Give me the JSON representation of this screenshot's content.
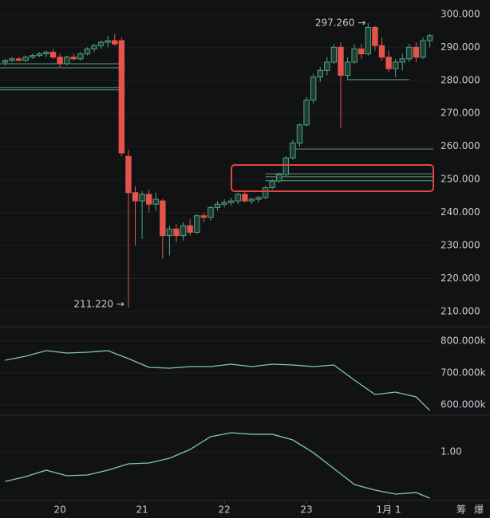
{
  "chart_data": {
    "type": "candlestick",
    "x": [
      -16,
      -14,
      -12,
      -10,
      -8,
      -6,
      -4,
      -2,
      0,
      2,
      4,
      6,
      8,
      10,
      12,
      14,
      16,
      18,
      20,
      22,
      24,
      26,
      28,
      30,
      32,
      34,
      36,
      38,
      40,
      42,
      44,
      46,
      48,
      50,
      52,
      54,
      56,
      58,
      60,
      62,
      64,
      66,
      68,
      70,
      72,
      74,
      76,
      78,
      80,
      82,
      84,
      86,
      88,
      90,
      92,
      94,
      96,
      98,
      100,
      102,
      104,
      106,
      108
    ],
    "open": [
      285.5,
      286,
      286.5,
      286,
      287,
      287.5,
      288,
      288.5,
      287,
      285,
      287,
      286.5,
      288,
      289.5,
      290.5,
      291.5,
      292,
      292,
      257,
      246,
      243.5,
      245.5,
      242.5,
      243.5,
      233,
      235,
      233,
      236,
      234,
      239,
      238.5,
      241.5,
      242.5,
      243,
      243.5,
      245.5,
      243.5,
      244,
      244.5,
      247.5,
      249.5,
      251.5,
      256.5,
      261,
      266.5,
      274,
      281,
      283,
      285.5,
      290,
      281.5,
      285.5,
      289.5,
      288,
      296,
      290.5,
      287,
      283.5,
      285.5,
      286.5,
      290,
      287,
      292
    ],
    "high": [
      286.5,
      287,
      287,
      287.5,
      288,
      288.5,
      289,
      289.5,
      288,
      287.5,
      288,
      288.5,
      290,
      291,
      292,
      293.5,
      294,
      293,
      259,
      248,
      246.5,
      247,
      246,
      244,
      236,
      236.5,
      237,
      238,
      239.5,
      240,
      242,
      243.5,
      244,
      244.5,
      246,
      246.5,
      244.5,
      245,
      248,
      250,
      252,
      257,
      262,
      267,
      275,
      282,
      284,
      287,
      291,
      291.5,
      287,
      291,
      291,
      297.26,
      296.5,
      293,
      289,
      286.5,
      288,
      291,
      291.5,
      293,
      294
    ],
    "low": [
      284.5,
      285.5,
      285.8,
      285.5,
      286.5,
      287,
      287,
      286.5,
      284,
      284.5,
      286,
      286,
      287.5,
      288.5,
      289.5,
      290,
      290.5,
      257,
      211.22,
      230,
      232,
      240,
      240.5,
      226,
      227,
      231,
      231.5,
      233,
      233.5,
      237,
      237.5,
      240.5,
      241.5,
      242,
      242.5,
      243,
      242.5,
      243,
      244,
      247,
      249,
      251,
      256,
      260,
      266,
      273,
      279.5,
      281.5,
      285,
      265.5,
      280,
      285,
      286.5,
      287.5,
      289,
      286,
      282.5,
      281,
      283,
      285.5,
      285.5,
      286.5,
      290
    ],
    "close": [
      286,
      286.5,
      286,
      287,
      287.5,
      288,
      288.5,
      287,
      285,
      287,
      286.5,
      288,
      289.5,
      290.5,
      291.5,
      292,
      291,
      258,
      246,
      243.5,
      245.5,
      242.5,
      244,
      233,
      235,
      233,
      236,
      234,
      239,
      238.5,
      241.5,
      242.5,
      243,
      243.5,
      245.5,
      243.5,
      244,
      244.5,
      247.5,
      249.5,
      251.5,
      256.5,
      261,
      266.5,
      274,
      281,
      283,
      285.5,
      290,
      281.5,
      285.5,
      289.5,
      288,
      296,
      290.5,
      287,
      283.5,
      285.5,
      286.5,
      290,
      287,
      292,
      293.5
    ],
    "up_color": "#4fa37f",
    "down_color": "#e5534b",
    "xlim": [
      -17.5,
      109.5
    ],
    "xticks": [
      {
        "value": 0,
        "label": "20"
      },
      {
        "value": 24,
        "label": "21"
      },
      {
        "value": 48,
        "label": "22"
      },
      {
        "value": 72,
        "label": "23"
      },
      {
        "value": 96,
        "label": "1月 1"
      }
    ],
    "ylim": [
      205.9,
      304.3
    ],
    "yticks": [
      {
        "value": 210,
        "label": "210.000"
      },
      {
        "value": 220,
        "label": "220.000"
      },
      {
        "value": 230,
        "label": "230.000"
      },
      {
        "value": 240,
        "label": "240.000"
      },
      {
        "value": 250,
        "label": "250.000"
      },
      {
        "value": 260,
        "label": "260.000"
      },
      {
        "value": 270,
        "label": "270.000"
      },
      {
        "value": 280,
        "label": "280.000"
      },
      {
        "value": 290,
        "label": "290.000"
      },
      {
        "value": 300,
        "label": "300.000"
      }
    ],
    "annotations": [
      {
        "text": "297.260 →",
        "x": 90,
        "y": 297.26
      },
      {
        "text": "211.220 →",
        "x": 20,
        "y": 211.22
      }
    ],
    "levels": [
      {
        "price": 285.0,
        "from": -17.5,
        "to": 19
      },
      {
        "price": 283.8,
        "from": -17.5,
        "to": 19
      },
      {
        "price": 277.8,
        "from": -17.5,
        "to": 19
      },
      {
        "price": 277.1,
        "from": -17.5,
        "to": 19
      },
      {
        "price": 259.2,
        "from": 67,
        "to": 109
      },
      {
        "price": 251.7,
        "from": 60,
        "to": 109
      },
      {
        "price": 250.8,
        "from": 60,
        "to": 109
      },
      {
        "price": 249.6,
        "from": 60,
        "to": 109
      },
      {
        "price": 280.2,
        "from": 84,
        "to": 102
      }
    ],
    "indicators": [
      {
        "type": "line",
        "color": "#7fc9b0",
        "x": [
          -16,
          -10,
          -4,
          2,
          8,
          14,
          20,
          26,
          32,
          38,
          44,
          50,
          56,
          62,
          68,
          74,
          80,
          86,
          92,
          98,
          104,
          108
        ],
        "values": [
          740000,
          752500,
          770000,
          762500,
          765000,
          770000,
          745000,
          717500,
          715000,
          720000,
          720000,
          727500,
          720000,
          727500,
          725000,
          720000,
          725000,
          677500,
          632500,
          640000,
          625000,
          582500
        ],
        "ylim": [
          570000,
          832500
        ],
        "yticks": [
          {
            "value": 600000,
            "label": "600.000k"
          },
          {
            "value": 700000,
            "label": "700.000k"
          },
          {
            "value": 800000,
            "label": "800.000k"
          }
        ]
      },
      {
        "type": "line",
        "color": "#7fc9b0",
        "x": [
          -16,
          -10,
          -4,
          2,
          8,
          14,
          20,
          26,
          32,
          38,
          44,
          50,
          56,
          62,
          68,
          74,
          80,
          86,
          92,
          98,
          104,
          108
        ],
        "values": [
          0.753,
          0.793,
          0.847,
          0.8,
          0.807,
          0.847,
          0.9,
          0.907,
          0.947,
          1.02,
          1.127,
          1.16,
          1.147,
          1.147,
          1.1,
          0.993,
          0.86,
          0.727,
          0.68,
          0.647,
          0.66,
          0.613
        ],
        "ylim": [
          0.567,
          1.28
        ],
        "yticks": [
          {
            "value": 1,
            "label": "1.00"
          }
        ]
      }
    ],
    "toolbar": [
      "筹",
      "爆"
    ]
  }
}
